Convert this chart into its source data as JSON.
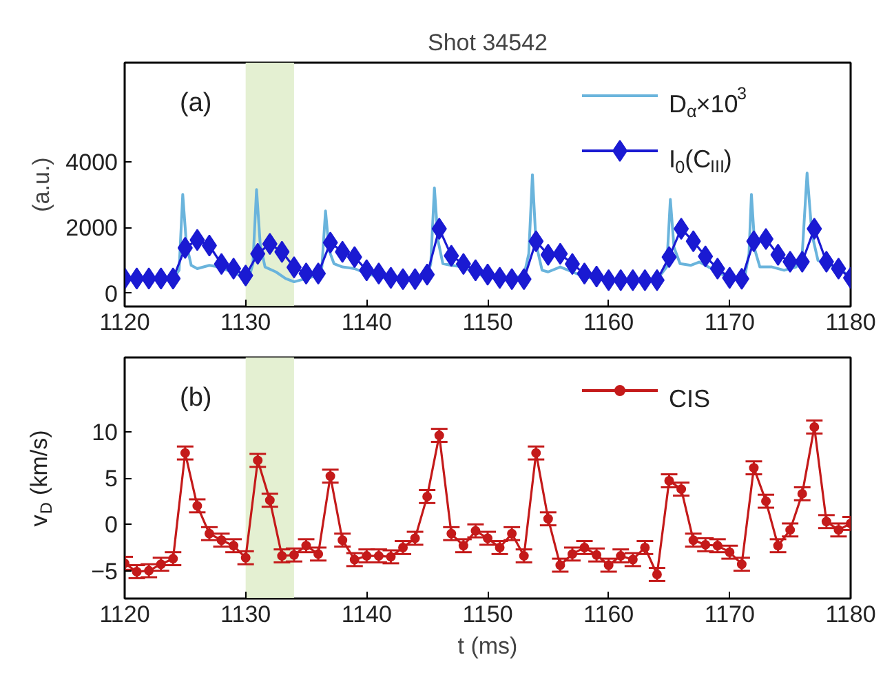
{
  "chart_data": [
    {
      "type": "line",
      "title": "Shot 34542",
      "ylabel": "(a.u.)",
      "annotations": [
        "(a)"
      ],
      "legend": "top right",
      "xlim": [
        1120,
        1180
      ],
      "ylim": [
        -400,
        7000
      ],
      "xticks": [
        1120,
        1130,
        1140,
        1150,
        1160,
        1170,
        1180
      ],
      "yticks": [
        0,
        2000,
        4000
      ],
      "bands": [
        {
          "axis": "x",
          "from": 1130,
          "to": 1134,
          "color": "#e4f0d2"
        }
      ],
      "x": [
        1120,
        1121,
        1122,
        1123,
        1124,
        1125,
        1126,
        1127,
        1128,
        1129,
        1130,
        1131,
        1132,
        1133,
        1134,
        1135,
        1136,
        1137,
        1138,
        1139,
        1140,
        1141,
        1142,
        1143,
        1144,
        1145,
        1146,
        1147,
        1148,
        1149,
        1150,
        1151,
        1152,
        1153,
        1154,
        1155,
        1156,
        1157,
        1158,
        1159,
        1160,
        1161,
        1162,
        1163,
        1164,
        1165,
        1166,
        1167,
        1168,
        1169,
        1170,
        1171,
        1172,
        1173,
        1174,
        1175,
        1176,
        1177,
        1178,
        1179,
        1180
      ],
      "series": [
        {
          "name": "D$_{α}$×10$^{3}$",
          "color": "#6ab4dc",
          "marker": "none",
          "x": [
            1123,
            1124,
            1124.5,
            1124.8,
            1125.1,
            1125.5,
            1126,
            1127,
            1127.8,
            1128.5,
            1129.5,
            1130.3,
            1130.6,
            1130.9,
            1131.2,
            1131.6,
            1132.5,
            1133.3,
            1134,
            1135,
            1136,
            1136.3,
            1136.6,
            1136.9,
            1137.3,
            1138,
            1139,
            1140,
            1141,
            1142,
            1143,
            1144,
            1145,
            1145.3,
            1145.6,
            1145.9,
            1146.3,
            1147,
            1148,
            1149,
            1150,
            1151,
            1152,
            1153,
            1153.4,
            1153.7,
            1154,
            1154.5,
            1155,
            1156,
            1157,
            1158,
            1159,
            1160,
            1161,
            1162,
            1163,
            1164,
            1164.8,
            1165.1,
            1165.4,
            1165.9,
            1166.8,
            1167.5,
            1168.5,
            1169.5,
            1170.5,
            1171.3,
            1171.6,
            1171.8,
            1172.1,
            1172.5,
            1173.5,
            1174.5,
            1175.5,
            1176,
            1176.4,
            1176.8,
            1177.3,
            1178,
            1179,
            1180
          ],
          "values": [
            430,
            450,
            700,
            3000,
            1500,
            850,
            750,
            850,
            800,
            700,
            550,
            500,
            900,
            3150,
            1500,
            800,
            650,
            450,
            350,
            450,
            550,
            800,
            2500,
            1300,
            900,
            800,
            750,
            600,
            500,
            450,
            450,
            450,
            500,
            900,
            3200,
            1600,
            900,
            850,
            800,
            600,
            500,
            450,
            450,
            550,
            1200,
            3600,
            1500,
            700,
            650,
            800,
            650,
            500,
            450,
            400,
            400,
            400,
            400,
            420,
            800,
            2850,
            1400,
            900,
            850,
            950,
            750,
            550,
            450,
            600,
            1200,
            3000,
            1300,
            800,
            800,
            700,
            800,
            1200,
            3650,
            1800,
            1000,
            900,
            750,
            500
          ]
        },
        {
          "name": "I$_{0}$(C$_{III}$)",
          "color": "#1a1ad2",
          "marker": "diamond",
          "values": [
            450,
            450,
            450,
            450,
            450,
            1380,
            1620,
            1450,
            890,
            750,
            540,
            1200,
            1500,
            1260,
            790,
            600,
            600,
            1540,
            1260,
            1100,
            700,
            600,
            470,
            430,
            430,
            570,
            1960,
            1140,
            890,
            700,
            570,
            470,
            430,
            430,
            1580,
            1170,
            1200,
            890,
            600,
            510,
            400,
            400,
            400,
            400,
            400,
            1100,
            1960,
            1580,
            1120,
            750,
            470,
            440,
            1580,
            1650,
            1170,
            960,
            960,
            1960,
            960,
            750,
            470
          ]
        }
      ]
    },
    {
      "type": "line",
      "xlabel": "t (ms)",
      "ylabel": "v$_{D}$ (km/s)",
      "annotations": [
        "(b)"
      ],
      "legend": "top right",
      "xlim": [
        1120,
        1180
      ],
      "ylim": [
        -8,
        18
      ],
      "xticks": [
        1120,
        1130,
        1140,
        1150,
        1160,
        1170,
        1180
      ],
      "yticks": [
        -5,
        0,
        5,
        10
      ],
      "bands": [
        {
          "axis": "x",
          "from": 1130,
          "to": 1134,
          "color": "#e4f0d2"
        }
      ],
      "x": [
        1120,
        1121,
        1122,
        1123,
        1124,
        1125,
        1126,
        1127,
        1128,
        1129,
        1130,
        1131,
        1132,
        1133,
        1134,
        1135,
        1136,
        1137,
        1138,
        1139,
        1140,
        1141,
        1142,
        1143,
        1144,
        1145,
        1146,
        1147,
        1148,
        1149,
        1150,
        1151,
        1152,
        1153,
        1154,
        1155,
        1156,
        1157,
        1158,
        1159,
        1160,
        1161,
        1162,
        1163,
        1164,
        1165,
        1166,
        1167,
        1168,
        1169,
        1170,
        1171,
        1172,
        1173,
        1174,
        1175,
        1176,
        1177,
        1178,
        1179,
        1180
      ],
      "series": [
        {
          "name": "CIS",
          "color": "#c41a1a",
          "marker": "circle",
          "values": [
            -4.2,
            -5.1,
            -5.0,
            -4.3,
            -3.7,
            7.7,
            2.0,
            -1.0,
            -1.7,
            -2.3,
            -3.6,
            6.9,
            2.6,
            -3.4,
            -3.3,
            -2.3,
            -3.2,
            5.2,
            -1.7,
            -3.8,
            -3.4,
            -3.4,
            -3.5,
            -2.5,
            -1.5,
            3.0,
            9.6,
            -1.0,
            -2.3,
            -0.7,
            -1.5,
            -2.5,
            -1.0,
            -3.4,
            7.7,
            0.6,
            -4.4,
            -3.2,
            -2.5,
            -3.3,
            -4.4,
            -3.4,
            -3.8,
            -2.5,
            -5.4,
            4.7,
            3.8,
            -1.7,
            -2.2,
            -2.3,
            -3.0,
            -4.3,
            6.1,
            2.5,
            -2.3,
            -0.6,
            3.3,
            10.5,
            0.3,
            -0.6,
            0.1
          ],
          "errors": [
            0.7,
            0.7,
            0.7,
            0.7,
            0.7,
            0.7,
            0.7,
            0.7,
            0.7,
            0.7,
            0.7,
            0.7,
            0.7,
            0.7,
            0.7,
            0.7,
            0.7,
            0.7,
            0.7,
            0.7,
            0.7,
            0.7,
            0.7,
            0.7,
            0.7,
            0.7,
            0.7,
            0.7,
            0.7,
            0.7,
            0.7,
            0.7,
            0.7,
            0.7,
            0.7,
            0.7,
            0.7,
            0.7,
            0.7,
            0.7,
            0.7,
            0.7,
            0.7,
            0.7,
            0.7,
            0.7,
            0.7,
            0.7,
            0.7,
            0.7,
            0.7,
            0.7,
            0.7,
            0.7,
            0.7,
            0.7,
            0.7,
            0.7,
            0.7,
            0.7,
            0.7
          ]
        }
      ]
    }
  ]
}
